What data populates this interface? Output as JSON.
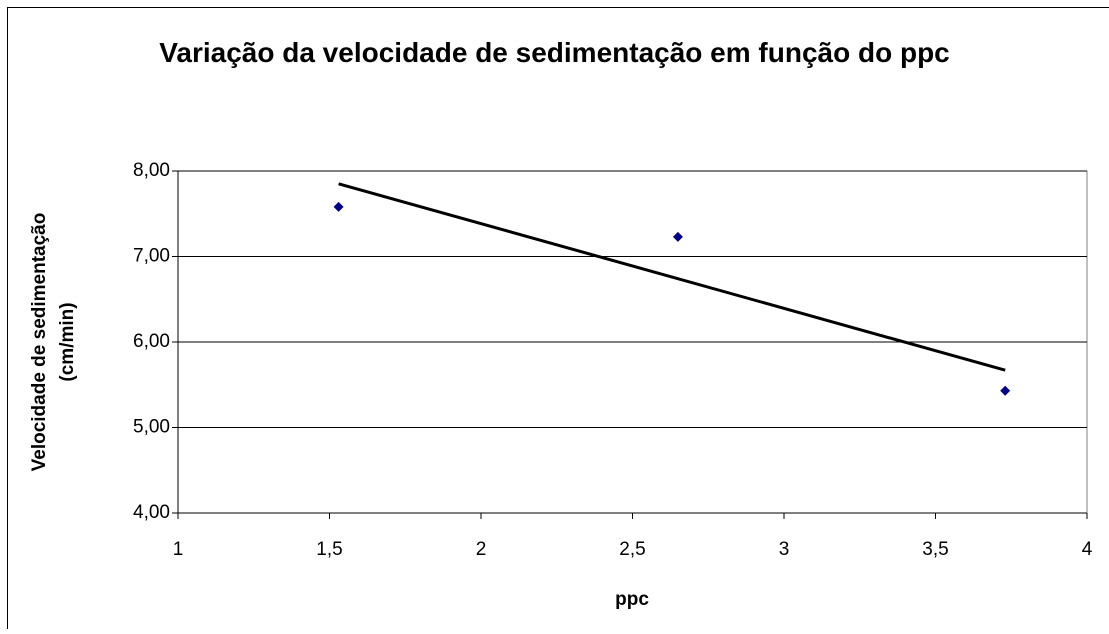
{
  "chart_data": {
    "type": "scatter",
    "title": "Variação da velocidade de sedimentação em função do ppc",
    "xlabel": "ppc",
    "ylabel": [
      "Velocidade de sedimentação",
      "(cm/min)"
    ],
    "x": [
      1.53,
      2.65,
      3.73
    ],
    "values": [
      7.58,
      7.23,
      5.43
    ],
    "color": "#000080",
    "trendline": {
      "x": [
        1.53,
        3.73
      ],
      "values": [
        7.85,
        5.67
      ],
      "color": "#000000"
    },
    "xlim": [
      1,
      4
    ],
    "xticks": [
      1,
      {
        "value": 1.5,
        "label": "1,5"
      },
      2,
      {
        "value": 2.5,
        "label": "2,5"
      },
      3,
      {
        "value": 3.5,
        "label": "3,5"
      },
      4
    ],
    "ylim": [
      4,
      8
    ],
    "yticks": [
      {
        "value": 4,
        "label": "4,00"
      },
      {
        "value": 5,
        "label": "5,00"
      },
      {
        "value": 6,
        "label": "6,00"
      },
      {
        "value": 7,
        "label": "7,00"
      },
      {
        "value": 8,
        "label": "8,00"
      }
    ],
    "grid": true
  }
}
